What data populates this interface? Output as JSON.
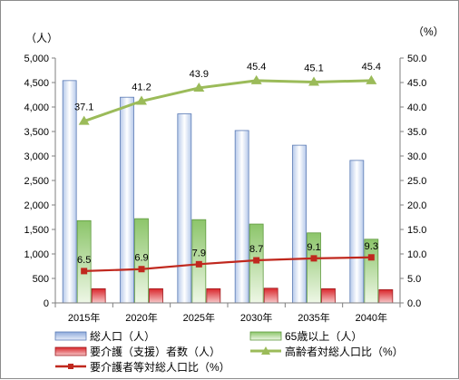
{
  "chart_data": {
    "type": "bar",
    "categories": [
      "2015年",
      "2020年",
      "2025年",
      "2030年",
      "2035年",
      "2040年"
    ],
    "left_axis": {
      "unit": "（人）",
      "ylim": [
        0,
        5000
      ],
      "ticks": [
        "0",
        "500",
        "1,000",
        "1,500",
        "2,000",
        "2,500",
        "3,000",
        "3,500",
        "4,000",
        "4,500",
        "5,000"
      ]
    },
    "right_axis": {
      "unit": "（%）",
      "ylim": [
        0,
        50
      ],
      "ticks": [
        "0.0",
        "5.0",
        "10.0",
        "15.0",
        "20.0",
        "25.0",
        "30.0",
        "35.0",
        "40.0",
        "45.0",
        "50.0"
      ]
    },
    "grid": false,
    "legend_position": "bottom",
    "series": [
      {
        "name": "総人口（人）",
        "type": "bar",
        "axis": "left",
        "values": [
          4540,
          4200,
          3860,
          3520,
          3220,
          2910
        ],
        "color": "#8eaadb"
      },
      {
        "name": "65歳以上（人）",
        "type": "bar",
        "axis": "left",
        "values": [
          1680,
          1720,
          1700,
          1610,
          1430,
          1300
        ],
        "color": "#8cc56a"
      },
      {
        "name": "要介護（支援）者数（人）",
        "type": "bar",
        "axis": "left",
        "values": [
          290,
          290,
          290,
          300,
          290,
          270
        ],
        "color": "#e0393d"
      },
      {
        "name": "高齢者対総人口比（%）",
        "type": "line",
        "axis": "right",
        "values": [
          37.1,
          41.2,
          43.9,
          45.4,
          45.1,
          45.4
        ],
        "labels": [
          "37.1",
          "41.2",
          "43.9",
          "45.4",
          "45.1",
          "45.4"
        ],
        "color": "#9bbb59"
      },
      {
        "name": "要介護者等対総人口比（%）",
        "type": "line",
        "axis": "right",
        "values": [
          6.5,
          6.9,
          7.9,
          8.7,
          9.1,
          9.3
        ],
        "labels": [
          "6.5",
          "6.9",
          "7.9",
          "8.7",
          "9.1",
          "9.3"
        ],
        "color": "#c0281e"
      }
    ]
  }
}
